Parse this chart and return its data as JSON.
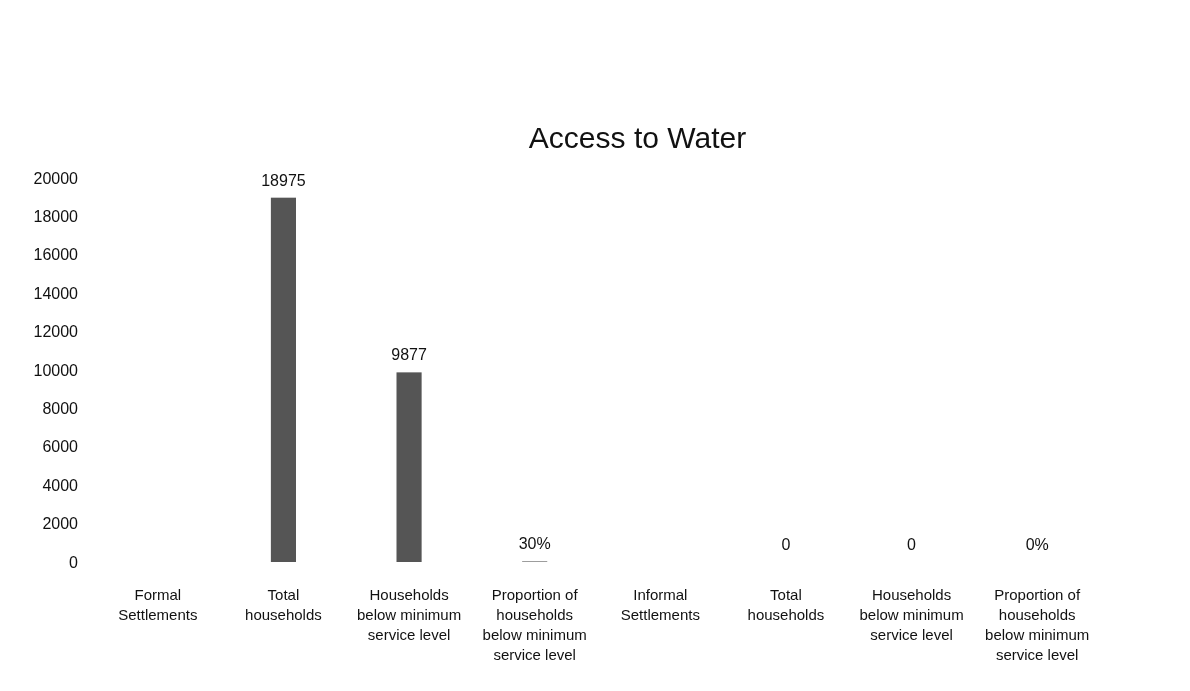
{
  "chart_data": {
    "type": "bar",
    "title": "Access to Water",
    "categories": [
      "Formal Settlements",
      "Total households",
      "Households below minimum service level",
      "Proportion of households below minimum service level",
      "Informal Settlements",
      "Total households",
      "Households below minimum service level",
      "Proportion of households below minimum service level"
    ],
    "values": [
      null,
      18975,
      9877,
      30,
      null,
      0,
      0,
      0
    ],
    "value_labels": [
      null,
      "18975",
      "9877",
      "30%",
      null,
      "0",
      "0",
      "0%"
    ],
    "color": "#555555",
    "ylim": [
      0,
      20000
    ],
    "yticks": [
      0,
      2000,
      4000,
      6000,
      8000,
      10000,
      12000,
      14000,
      16000,
      18000,
      20000
    ],
    "grid": false
  }
}
